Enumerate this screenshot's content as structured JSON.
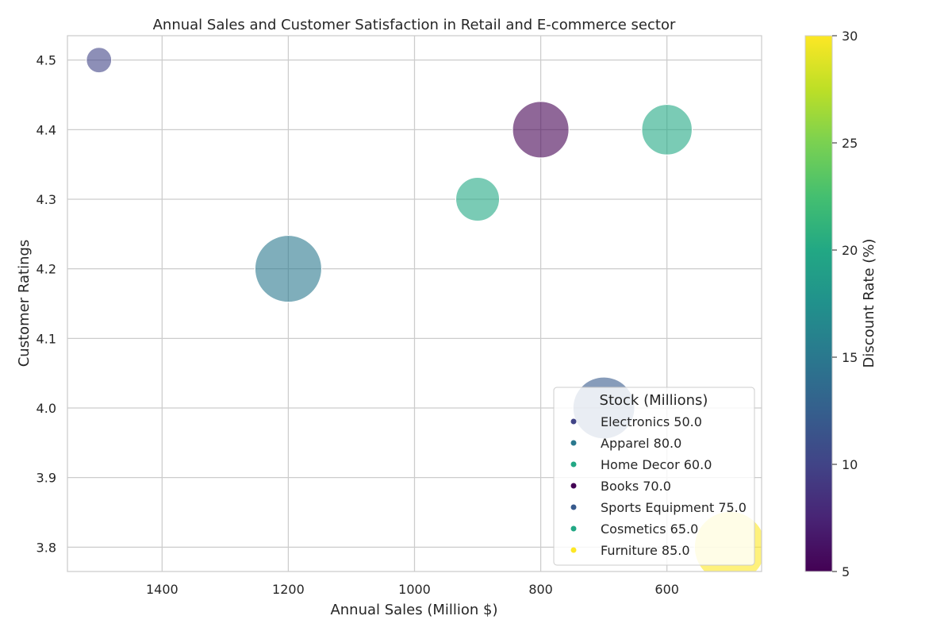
{
  "chart_data": {
    "type": "scatter",
    "title": "Annual Sales and Customer Satisfaction in Retail and E-commerce sector",
    "xlabel": "Annual Sales (Million $)",
    "ylabel": "Customer Ratings",
    "xlim": [
      1550,
      450
    ],
    "ylim": [
      3.765,
      4.535
    ],
    "x_reversed": true,
    "xticks": [
      1400,
      1200,
      1000,
      800,
      600
    ],
    "yticks": [
      3.8,
      3.9,
      4.0,
      4.1,
      4.2,
      4.3,
      4.4,
      4.5
    ],
    "ytick_labels": [
      "3.8",
      "3.9",
      "4.0",
      "4.1",
      "4.2",
      "4.3",
      "4.4",
      "4.5"
    ],
    "grid": true,
    "legend_title": "Stock (Millions)",
    "legend_location": "lower-right",
    "colorbar": {
      "label": "Discount Rate (%)",
      "range": [
        5,
        30
      ],
      "ticks": [
        5,
        10,
        15,
        20,
        25,
        30
      ],
      "colormap": "viridis"
    },
    "points": [
      {
        "category": "Electronics",
        "x": 1500,
        "y": 4.5,
        "stock": 50.0,
        "discount": 10,
        "legend_label": "Electronics 50.0"
      },
      {
        "category": "Apparel",
        "x": 1200,
        "y": 4.2,
        "stock": 80.0,
        "discount": 15,
        "legend_label": "Apparel 80.0"
      },
      {
        "category": "Home Decor",
        "x": 900,
        "y": 4.3,
        "stock": 60.0,
        "discount": 20,
        "legend_label": "Home Decor 60.0"
      },
      {
        "category": "Books",
        "x": 800,
        "y": 4.4,
        "stock": 70.0,
        "discount": 5,
        "legend_label": "Books 70.0"
      },
      {
        "category": "Sports Equipment",
        "x": 700,
        "y": 4.0,
        "stock": 75.0,
        "discount": 12,
        "legend_label": "Sports Equipment 75.0"
      },
      {
        "category": "Cosmetics",
        "x": 600,
        "y": 4.4,
        "stock": 65.0,
        "discount": 20,
        "legend_label": "Cosmetics 65.0"
      },
      {
        "category": "Furniture",
        "x": 500,
        "y": 3.8,
        "stock": 85.0,
        "discount": 30,
        "legend_label": "Furniture 85.0"
      }
    ]
  }
}
